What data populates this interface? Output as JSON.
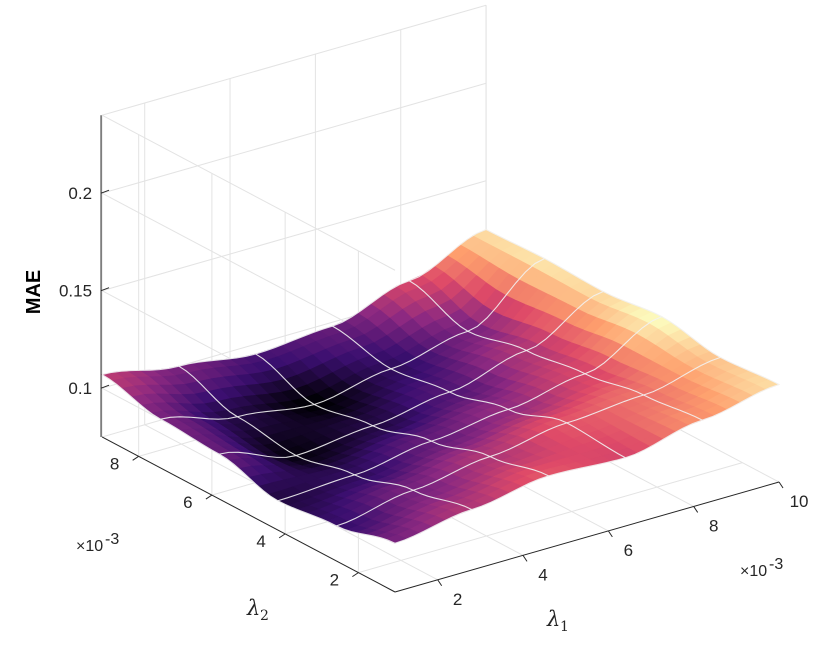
{
  "chart_data": {
    "type": "surface",
    "x_label": "λ",
    "x_label_sub": "1",
    "y_label": "λ",
    "y_label_sub": "2",
    "z_label": "MAE",
    "x_exponent": "×10",
    "x_exponent_power": "-3",
    "y_exponent": "×10",
    "y_exponent_power": "-3",
    "x_ticks": [
      "2",
      "4",
      "6",
      "8",
      "10"
    ],
    "y_ticks": [
      "2",
      "4",
      "6",
      "8"
    ],
    "z_ticks": [
      "0.1",
      "0.15",
      "0.2"
    ],
    "x_range": [
      1,
      10
    ],
    "y_range": [
      1,
      9
    ],
    "z_range": [
      0.075,
      0.24
    ],
    "grid": true,
    "colormap": "magma",
    "colormap_stops": [
      "#000004",
      "#3b0f70",
      "#8c2981",
      "#de4968",
      "#fe9f6d",
      "#fcfdbf"
    ],
    "x": [
      1,
      2.8,
      4.6,
      6.4,
      8.2,
      10
    ],
    "y": [
      1,
      2.6,
      4.2,
      5.8,
      7.4,
      9
    ],
    "z": [
      [
        0.1,
        0.106,
        0.112,
        0.11,
        0.118,
        0.125
      ],
      [
        0.093,
        0.1,
        0.106,
        0.112,
        0.115,
        0.123
      ],
      [
        0.09,
        0.092,
        0.098,
        0.103,
        0.11,
        0.128
      ],
      [
        0.098,
        0.086,
        0.09,
        0.096,
        0.106,
        0.125
      ],
      [
        0.1,
        0.09,
        0.085,
        0.092,
        0.1,
        0.126
      ],
      [
        0.107,
        0.1,
        0.095,
        0.098,
        0.11,
        0.125
      ]
    ]
  }
}
